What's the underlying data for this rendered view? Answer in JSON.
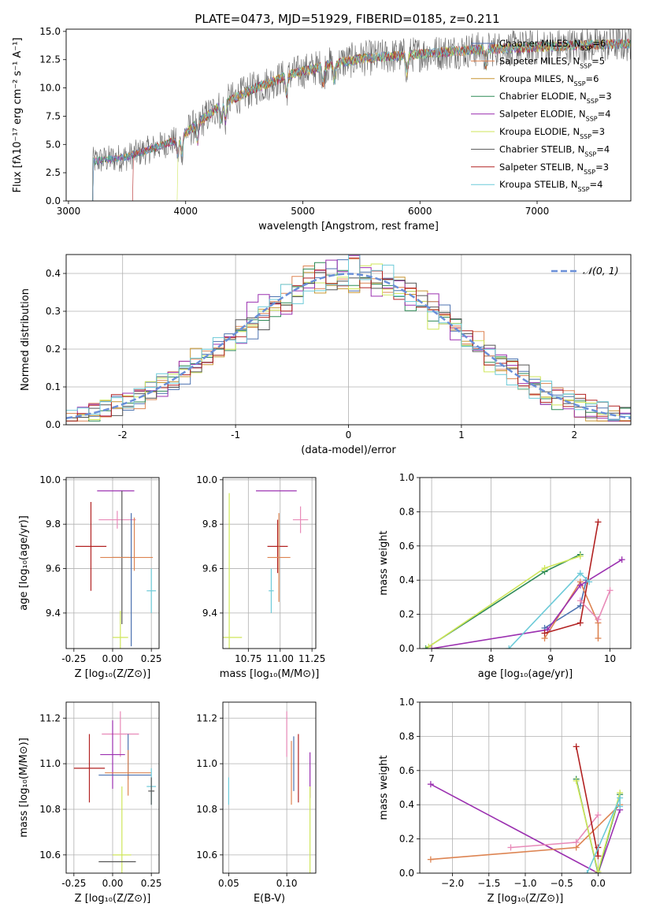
{
  "figure_title": "PLATE=0473, MJD=51929, FIBERID=0185, z=0.211",
  "series": [
    {
      "name": "Chabrier MILES, N<tspan baseline-shift='sub' font-size='9'>SSP</tspan>=6",
      "label": "Chabrier MILES, N_SSP=6",
      "color": "#4c72b0"
    },
    {
      "name": "Salpeter MILES, N_SSP=5",
      "label": "Salpeter MILES, N_SSP=5",
      "color": "#dd8452"
    },
    {
      "name": "Kroupa MILES, N_SSP=6",
      "label": "Kroupa MILES, N_SSP=6",
      "color": "#c89632"
    },
    {
      "name": "Chabrier ELODIE, N_SSP=3",
      "label": "Chabrier ELODIE, N_SSP=3",
      "color": "#2e8b57"
    },
    {
      "name": "Salpeter ELODIE, N_SSP=4",
      "label": "Salpeter ELODIE, N_SSP=4",
      "color": "#9b30b0"
    },
    {
      "name": "Kroupa ELODIE, N_SSP=3",
      "label": "Kroupa ELODIE, N_SSP=3",
      "color": "#cfe65a"
    },
    {
      "name": "Chabrier STELIB, N_SSP=4",
      "label": "Chabrier STELIB, N_SSP=4",
      "color": "#555555"
    },
    {
      "name": "Salpeter STELIB, N_SSP=3",
      "label": "Salpeter STELIB, N_SSP=3",
      "color": "#b22222"
    },
    {
      "name": "Kroupa STELIB, N_SSP=4",
      "label": "Kroupa STELIB, N_SSP=4",
      "color": "#6ccad8"
    }
  ],
  "chart_data": [
    {
      "id": "spectrum",
      "type": "line",
      "title": "PLATE=0473, MJD=51929, FIBERID=0185, z=0.211",
      "xlabel": "wavelength [Angstrom, rest frame]",
      "ylabel": "Flux [f_λ 10^-17 erg cm^-2 s^-1 A^-1]",
      "xlim": [
        2980,
        7800
      ],
      "ylim": [
        0,
        15.2
      ],
      "xticks": [
        3000,
        4000,
        5000,
        6000,
        7000
      ],
      "yticks": [
        0.0,
        2.5,
        5.0,
        7.5,
        10.0,
        12.5,
        15.0
      ],
      "data_start_wavelength": 3200,
      "continuum_profile": {
        "x": [
          3200,
          3500,
          3700,
          3900,
          4000,
          4300,
          4600,
          4900,
          5200,
          5500,
          6000,
          6500,
          7000,
          7400,
          7800
        ],
        "y": [
          3.5,
          3.9,
          4.6,
          5.3,
          6.0,
          8.5,
          10.0,
          11.2,
          12.0,
          12.6,
          13.0,
          13.4,
          13.6,
          13.8,
          13.9
        ]
      },
      "absorption_features": [
        3934,
        3968,
        4101,
        4304,
        4340,
        4861,
        5175,
        5270,
        5890,
        6563
      ],
      "series_starts": {
        "Salpeter STELIB, N_SSP=3": 3540,
        "Kroupa ELODIE, N_SSP=3": 3920
      }
    },
    {
      "id": "residuals",
      "type": "histogram",
      "xlabel": "(data-model)/error",
      "ylabel": "Normed distribution",
      "xlim": [
        -2.5,
        2.5
      ],
      "ylim": [
        0,
        0.45
      ],
      "xticks": [
        -2,
        -1,
        0,
        1,
        2
      ],
      "yticks": [
        0.0,
        0.1,
        0.2,
        0.3,
        0.4
      ],
      "bin_edges_range": [
        -2.5,
        2.5
      ],
      "n_bins": 50,
      "gaussian_label": "N(0,1)",
      "gaussian_color": "#6a8fd8"
    },
    {
      "id": "age_vs_Z",
      "type": "errorbar",
      "xlabel": "Z [log10(Z/Z⊙)]",
      "ylabel": "age [log10(age/yr)]",
      "xlim": [
        -0.3,
        0.3
      ],
      "ylim": [
        9.24,
        10.01
      ],
      "xticks": [
        -0.25,
        0.0,
        0.25
      ],
      "yticks": [
        9.4,
        9.6,
        9.8,
        10.0
      ],
      "points": [
        {
          "x": 0.02,
          "y": 9.95,
          "xerr": 0.12,
          "yerr": 0.0,
          "color": "#9b30b0"
        },
        {
          "x": 0.03,
          "y": 9.82,
          "xerr": 0.12,
          "yerr": 0.04,
          "color": "#e88ab8"
        },
        {
          "x": 0.14,
          "y": 9.71,
          "xerr": 0.0,
          "yerr": 0.12,
          "color": "#dd8452"
        },
        {
          "x": -0.14,
          "y": 9.7,
          "xerr": 0.1,
          "yerr": 0.2,
          "color": "#b22222"
        },
        {
          "x": 0.06,
          "y": 9.65,
          "xerr": 0.06,
          "yerr": 0.3,
          "color": "#555555"
        },
        {
          "x": 0.09,
          "y": 9.65,
          "xerr": 0.17,
          "yerr": 0.0,
          "color": "#dd8452"
        },
        {
          "x": 0.25,
          "y": 9.5,
          "xerr": 0.03,
          "yerr": 0.1,
          "color": "#6ccad8"
        },
        {
          "x": 0.05,
          "y": 9.29,
          "xerr": 0.05,
          "yerr": 0.12,
          "color": "#cfe65a"
        },
        {
          "x": 0.12,
          "y": 9.55,
          "xerr": 0.0,
          "yerr": 0.3,
          "color": "#4c72b0"
        }
      ]
    },
    {
      "id": "age_vs_mass",
      "type": "errorbar",
      "xlabel": "mass [log10(M/M⊙)]",
      "ylabel": "",
      "xlim": [
        10.55,
        11.28
      ],
      "ylim": [
        9.24,
        10.01
      ],
      "xticks": [
        10.75,
        11.0,
        11.25
      ],
      "yticks": [
        9.4,
        9.6,
        9.8,
        10.0
      ],
      "points": [
        {
          "x": 10.97,
          "y": 9.95,
          "xerr": 0.16,
          "yerr": 0.0,
          "color": "#9b30b0"
        },
        {
          "x": 11.16,
          "y": 9.82,
          "xerr": 0.06,
          "yerr": 0.06,
          "color": "#e88ab8"
        },
        {
          "x": 10.98,
          "y": 9.7,
          "xerr": 0.08,
          "yerr": 0.12,
          "color": "#b22222"
        },
        {
          "x": 10.99,
          "y": 9.65,
          "xerr": 0.09,
          "yerr": 0.2,
          "color": "#dd8452"
        },
        {
          "x": 10.93,
          "y": 9.5,
          "xerr": 0.02,
          "yerr": 0.1,
          "color": "#6ccad8"
        },
        {
          "x": 10.6,
          "y": 9.29,
          "xerr": 0.1,
          "yerr": 0.65,
          "color": "#cfe65a"
        }
      ]
    },
    {
      "id": "mw_vs_age",
      "type": "line",
      "xlabel": "age [log10(age/yr)]",
      "ylabel": "mass weight",
      "xlim": [
        6.8,
        10.35
      ],
      "ylim": [
        0,
        1.0
      ],
      "xticks": [
        7,
        8,
        9,
        10
      ],
      "yticks": [
        0.0,
        0.2,
        0.4,
        0.6,
        0.8,
        1.0
      ],
      "lines": [
        {
          "color": "#4c72b0",
          "points": [
            [
              8.9,
              0.12
            ],
            [
              9.5,
              0.25
            ],
            [
              9.6,
              0.4
            ]
          ]
        },
        {
          "color": "#dd8452",
          "points": [
            [
              8.9,
              0.06
            ],
            [
              9.5,
              0.39
            ],
            [
              9.8,
              0.15
            ],
            [
              9.8,
              0.06
            ]
          ]
        },
        {
          "color": "#2e8b57",
          "points": [
            [
              6.9,
              0.0
            ],
            [
              8.9,
              0.45
            ],
            [
              9.5,
              0.55
            ]
          ]
        },
        {
          "color": "#9b30b0",
          "points": [
            [
              7.0,
              0.0
            ],
            [
              8.95,
              0.11
            ],
            [
              9.5,
              0.37
            ],
            [
              10.2,
              0.52
            ]
          ]
        },
        {
          "color": "#cfe65a",
          "points": [
            [
              6.95,
              0.01
            ],
            [
              8.9,
              0.47
            ],
            [
              9.5,
              0.54
            ]
          ]
        },
        {
          "color": "#b22222",
          "points": [
            [
              8.9,
              0.09
            ],
            [
              9.5,
              0.15
            ],
            [
              9.8,
              0.74
            ]
          ]
        },
        {
          "color": "#6ccad8",
          "points": [
            [
              8.3,
              0.0
            ],
            [
              9.5,
              0.44
            ],
            [
              9.65,
              0.39
            ]
          ]
        },
        {
          "color": "#e88ab8",
          "points": [
            [
              9.5,
              0.28
            ],
            [
              9.8,
              0.17
            ],
            [
              10.0,
              0.34
            ]
          ]
        }
      ]
    },
    {
      "id": "mass_vs_Z",
      "type": "errorbar",
      "xlabel": "Z [log10(Z/Z⊙)]",
      "ylabel": "mass [log10(M/M⊙)]",
      "xlim": [
        -0.3,
        0.3
      ],
      "ylim": [
        10.52,
        11.27
      ],
      "xticks": [
        -0.25,
        0.0,
        0.25
      ],
      "yticks": [
        10.6,
        10.8,
        11.0,
        11.2
      ],
      "points": [
        {
          "x": 0.05,
          "y": 11.13,
          "xerr": 0.12,
          "yerr": 0.1,
          "color": "#e88ab8"
        },
        {
          "x": 0.0,
          "y": 11.04,
          "xerr": 0.08,
          "yerr": 0.15,
          "color": "#9b30b0"
        },
        {
          "x": 0.1,
          "y": 11.03,
          "xerr": 0.0,
          "yerr": 0.1,
          "color": "#4c72b0"
        },
        {
          "x": -0.15,
          "y": 10.98,
          "xerr": 0.1,
          "yerr": 0.15,
          "color": "#b22222"
        },
        {
          "x": 0.1,
          "y": 10.96,
          "xerr": 0.15,
          "yerr": 0.1,
          "color": "#dd8452"
        },
        {
          "x": 0.08,
          "y": 10.95,
          "xerr": 0.17,
          "yerr": 0.0,
          "color": "#4c72b0"
        },
        {
          "x": 0.25,
          "y": 10.9,
          "xerr": 0.03,
          "yerr": 0.08,
          "color": "#6ccad8"
        },
        {
          "x": 0.25,
          "y": 10.88,
          "xerr": 0.02,
          "yerr": 0.06,
          "color": "#555555"
        },
        {
          "x": 0.06,
          "y": 10.6,
          "xerr": 0.06,
          "yerr": 0.3,
          "color": "#cfe65a"
        },
        {
          "x": 0.03,
          "y": 10.57,
          "xerr": 0.12,
          "yerr": 0.0,
          "color": "#555555"
        }
      ]
    },
    {
      "id": "mass_vs_ebv",
      "type": "errorbar",
      "xlabel": "E(B-V)",
      "ylabel": "",
      "xlim": [
        0.045,
        0.125
      ],
      "ylim": [
        10.52,
        11.27
      ],
      "xticks": [
        0.05,
        0.1
      ],
      "yticks": [
        10.6,
        10.8,
        11.0,
        11.2
      ],
      "points": [
        {
          "x": 0.05,
          "y": 10.88,
          "xerr": 0.0,
          "yerr": 0.06,
          "color": "#6ccad8"
        },
        {
          "x": 0.1,
          "y": 11.13,
          "xerr": 0.0,
          "yerr": 0.1,
          "color": "#e88ab8"
        },
        {
          "x": 0.104,
          "y": 10.96,
          "xerr": 0.0,
          "yerr": 0.14,
          "color": "#dd8452"
        },
        {
          "x": 0.106,
          "y": 11.0,
          "xerr": 0.0,
          "yerr": 0.12,
          "color": "#4c72b0"
        },
        {
          "x": 0.11,
          "y": 10.98,
          "xerr": 0.0,
          "yerr": 0.15,
          "color": "#b22222"
        },
        {
          "x": 0.12,
          "y": 10.95,
          "xerr": 0.0,
          "yerr": 0.1,
          "color": "#9b30b0"
        },
        {
          "x": 0.12,
          "y": 10.6,
          "xerr": 0.0,
          "yerr": 0.3,
          "color": "#cfe65a"
        }
      ]
    },
    {
      "id": "mw_vs_Z",
      "type": "line",
      "xlabel": "Z [log10(Z/Z⊙)]",
      "ylabel": "mass weight",
      "xlim": [
        -2.45,
        0.45
      ],
      "ylim": [
        0,
        1.0
      ],
      "xticks": [
        -2.0,
        -1.5,
        -1.0,
        -0.5,
        0.0
      ],
      "yticks": [
        0.0,
        0.2,
        0.4,
        0.6,
        0.8,
        1.0
      ],
      "lines": [
        {
          "color": "#9b30b0",
          "points": [
            [
              -2.3,
              0.52
            ],
            [
              0.0,
              0.0
            ],
            [
              0.3,
              0.37
            ]
          ]
        },
        {
          "color": "#dd8452",
          "points": [
            [
              -2.3,
              0.08
            ],
            [
              -0.3,
              0.15
            ],
            [
              0.3,
              0.4
            ]
          ]
        },
        {
          "color": "#e88ab8",
          "points": [
            [
              -1.2,
              0.15
            ],
            [
              -0.3,
              0.18
            ],
            [
              0.0,
              0.34
            ]
          ]
        },
        {
          "color": "#2e8b57",
          "points": [
            [
              -0.3,
              0.55
            ],
            [
              0.0,
              0.0
            ],
            [
              0.3,
              0.46
            ]
          ]
        },
        {
          "color": "#cfe65a",
          "points": [
            [
              -0.3,
              0.54
            ],
            [
              0.0,
              0.01
            ],
            [
              0.3,
              0.47
            ]
          ]
        },
        {
          "color": "#b22222",
          "points": [
            [
              -0.3,
              0.74
            ],
            [
              0.0,
              0.1
            ],
            [
              0.0,
              0.15
            ]
          ]
        },
        {
          "color": "#6ccad8",
          "points": [
            [
              -0.15,
              0.0
            ],
            [
              0.3,
              0.44
            ],
            [
              0.3,
              0.39
            ]
          ]
        }
      ]
    }
  ]
}
